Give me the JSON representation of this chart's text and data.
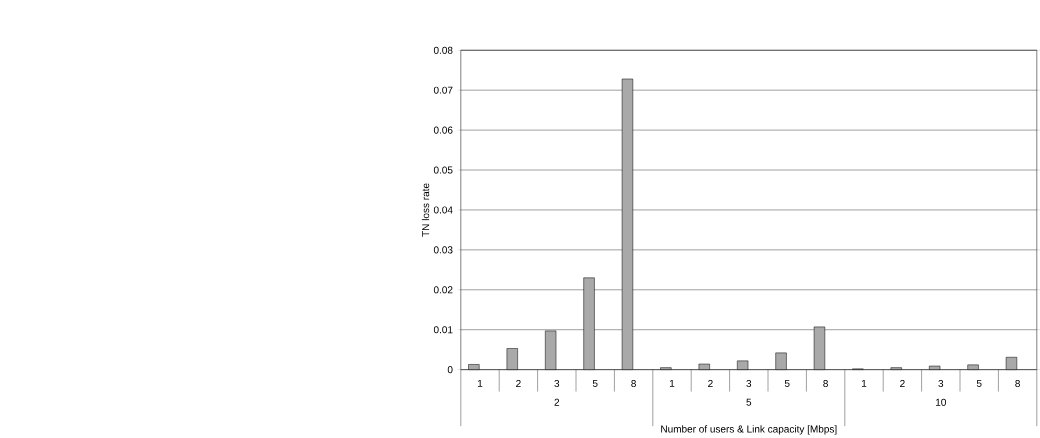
{
  "chart_data": {
    "type": "bar",
    "xlabel": "Number of users & Link capacity [Mbps]",
    "ylabel": "TN loss rate",
    "categories": [
      "1",
      "2",
      "3",
      "5",
      "8",
      "1",
      "2",
      "3",
      "5",
      "8",
      "1",
      "2",
      "3",
      "5",
      "8"
    ],
    "values": [
      0.0013,
      0.0053,
      0.0097,
      0.023,
      0.0728,
      0.0005,
      0.0014,
      0.0022,
      0.0042,
      0.0107,
      0.0002,
      0.0005,
      0.0009,
      0.0012,
      0.0031
    ],
    "color": "#a9a9a9",
    "ylim": [
      0,
      0.08
    ],
    "yticks": [
      0,
      0.01,
      0.02,
      0.03,
      0.04,
      0.05,
      0.06,
      0.07,
      0.08
    ],
    "grid": "y",
    "annotations": [
      "2",
      "5",
      "10"
    ]
  }
}
